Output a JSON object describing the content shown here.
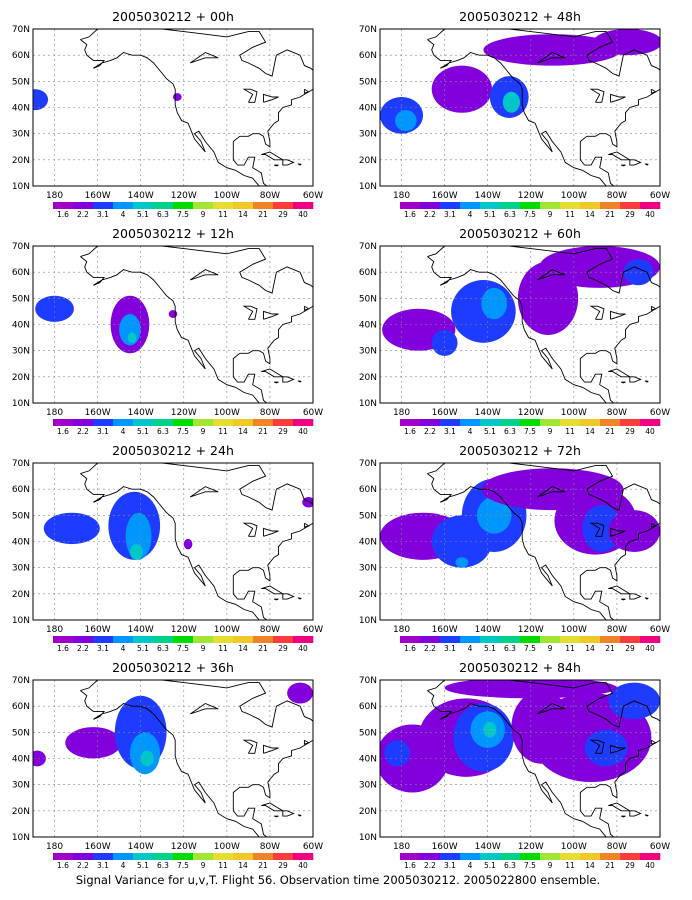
{
  "caption": "Signal Variance for u,v,T. Flight 56. Observation time 2005030212. 2005022800 ensemble.",
  "colorbar": {
    "levels": [
      "1.6",
      "2.2",
      "3.1",
      "4",
      "5.1",
      "6.3",
      "7.5",
      "9",
      "11",
      "14",
      "21",
      "29",
      "40"
    ],
    "colors": [
      "#a000c8",
      "#8200dc",
      "#1e3cff",
      "#0096ff",
      "#00c8c8",
      "#00d28c",
      "#00dc00",
      "#a0e632",
      "#e6dc32",
      "#f0c828",
      "#f08228",
      "#fa3c3c",
      "#f00082"
    ]
  },
  "chart_data": {
    "type": "heatmap",
    "field": "Signal Variance for u,v,T",
    "x_ticks": [
      "180",
      "160W",
      "140W",
      "120W",
      "100W",
      "80W",
      "60W"
    ],
    "y_ticks": [
      "70N",
      "60N",
      "50N",
      "40N",
      "30N",
      "20N",
      "10N"
    ],
    "xlim": [
      -190,
      -60
    ],
    "ylim": [
      10,
      70
    ],
    "grid": true,
    "panels": [
      {
        "title": "2005030212 + 00h",
        "blobs": [
          {
            "lon": -189,
            "lat": 43,
            "rx": 6,
            "ry": 4,
            "level": 2
          },
          {
            "lon": -123,
            "lat": 44,
            "rx": 2,
            "ry": 1.5,
            "level": 1
          }
        ]
      },
      {
        "title": "2005030212 + 12h",
        "blobs": [
          {
            "lon": -180,
            "lat": 46,
            "rx": 9,
            "ry": 5,
            "level": 2
          },
          {
            "lon": -145,
            "lat": 40,
            "rx": 9,
            "ry": 11,
            "level": 1
          },
          {
            "lon": -145,
            "lat": 38,
            "rx": 5,
            "ry": 6,
            "level": 3
          },
          {
            "lon": -144,
            "lat": 35,
            "rx": 2,
            "ry": 2,
            "level": 4
          },
          {
            "lon": -125,
            "lat": 44,
            "rx": 2,
            "ry": 1.5,
            "level": 1
          }
        ]
      },
      {
        "title": "2005030212 + 24h",
        "blobs": [
          {
            "lon": -172,
            "lat": 45,
            "rx": 13,
            "ry": 6,
            "level": 2
          },
          {
            "lon": -143,
            "lat": 46,
            "rx": 12,
            "ry": 13,
            "level": 2
          },
          {
            "lon": -141,
            "lat": 42,
            "rx": 6,
            "ry": 9,
            "level": 3
          },
          {
            "lon": -142,
            "lat": 36,
            "rx": 3,
            "ry": 3,
            "level": 4
          },
          {
            "lon": -118,
            "lat": 39,
            "rx": 2,
            "ry": 2,
            "level": 1
          },
          {
            "lon": -62,
            "lat": 55,
            "rx": 3,
            "ry": 2,
            "level": 1
          }
        ]
      },
      {
        "title": "2005030212 + 36h",
        "blobs": [
          {
            "lon": -188,
            "lat": 40,
            "rx": 4,
            "ry": 3,
            "level": 1
          },
          {
            "lon": -162,
            "lat": 46,
            "rx": 13,
            "ry": 6,
            "level": 1
          },
          {
            "lon": -140,
            "lat": 50,
            "rx": 12,
            "ry": 14,
            "level": 2
          },
          {
            "lon": -138,
            "lat": 42,
            "rx": 7,
            "ry": 8,
            "level": 3
          },
          {
            "lon": -137,
            "lat": 40,
            "rx": 3,
            "ry": 3,
            "level": 4
          },
          {
            "lon": -66,
            "lat": 65,
            "rx": 6,
            "ry": 4,
            "level": 1
          }
        ]
      },
      {
        "title": "2005030212 + 48h",
        "blobs": [
          {
            "lon": -180,
            "lat": 37,
            "rx": 10,
            "ry": 7,
            "level": 2
          },
          {
            "lon": -178,
            "lat": 35,
            "rx": 5,
            "ry": 4,
            "level": 3
          },
          {
            "lon": -152,
            "lat": 47,
            "rx": 14,
            "ry": 9,
            "level": 1
          },
          {
            "lon": -130,
            "lat": 44,
            "rx": 9,
            "ry": 8,
            "level": 2
          },
          {
            "lon": -129,
            "lat": 42,
            "rx": 4,
            "ry": 4,
            "level": 4
          },
          {
            "lon": -110,
            "lat": 62,
            "rx": 32,
            "ry": 6,
            "level": 1
          },
          {
            "lon": -75,
            "lat": 65,
            "rx": 16,
            "ry": 5,
            "level": 1
          }
        ]
      },
      {
        "title": "2005030212 + 60h",
        "blobs": [
          {
            "lon": -172,
            "lat": 38,
            "rx": 17,
            "ry": 8,
            "level": 1
          },
          {
            "lon": -160,
            "lat": 33,
            "rx": 6,
            "ry": 5,
            "level": 2
          },
          {
            "lon": -142,
            "lat": 45,
            "rx": 15,
            "ry": 12,
            "level": 2
          },
          {
            "lon": -137,
            "lat": 48,
            "rx": 6,
            "ry": 6,
            "level": 3
          },
          {
            "lon": -112,
            "lat": 50,
            "rx": 14,
            "ry": 14,
            "level": 1
          },
          {
            "lon": -88,
            "lat": 62,
            "rx": 28,
            "ry": 8,
            "level": 1
          },
          {
            "lon": -70,
            "lat": 60,
            "rx": 7,
            "ry": 5,
            "level": 2
          }
        ]
      },
      {
        "title": "2005030212 + 72h",
        "blobs": [
          {
            "lon": -170,
            "lat": 42,
            "rx": 20,
            "ry": 9,
            "level": 1
          },
          {
            "lon": -152,
            "lat": 40,
            "rx": 14,
            "ry": 10,
            "level": 2
          },
          {
            "lon": -137,
            "lat": 50,
            "rx": 15,
            "ry": 14,
            "level": 2
          },
          {
            "lon": -137,
            "lat": 50,
            "rx": 8,
            "ry": 7,
            "level": 3
          },
          {
            "lon": -110,
            "lat": 60,
            "rx": 33,
            "ry": 8,
            "level": 1
          },
          {
            "lon": -90,
            "lat": 48,
            "rx": 19,
            "ry": 13,
            "level": 1
          },
          {
            "lon": -87,
            "lat": 45,
            "rx": 9,
            "ry": 9,
            "level": 2
          },
          {
            "lon": -72,
            "lat": 44,
            "rx": 12,
            "ry": 8,
            "level": 1
          },
          {
            "lon": -152,
            "lat": 32,
            "rx": 3,
            "ry": 2,
            "level": 3
          }
        ]
      },
      {
        "title": "2005030212 + 84h",
        "blobs": [
          {
            "lon": -175,
            "lat": 40,
            "rx": 17,
            "ry": 13,
            "level": 1
          },
          {
            "lon": -182,
            "lat": 42,
            "rx": 6,
            "ry": 5,
            "level": 2
          },
          {
            "lon": -150,
            "lat": 48,
            "rx": 22,
            "ry": 15,
            "level": 1
          },
          {
            "lon": -142,
            "lat": 48,
            "rx": 14,
            "ry": 13,
            "level": 2
          },
          {
            "lon": -140,
            "lat": 51,
            "rx": 8,
            "ry": 7,
            "level": 3
          },
          {
            "lon": -139,
            "lat": 51,
            "rx": 3,
            "ry": 3,
            "level": 4
          },
          {
            "lon": -115,
            "lat": 52,
            "rx": 14,
            "ry": 14,
            "level": 1
          },
          {
            "lon": -92,
            "lat": 48,
            "rx": 28,
            "ry": 17,
            "level": 1
          },
          {
            "lon": -85,
            "lat": 44,
            "rx": 10,
            "ry": 7,
            "level": 2
          },
          {
            "lon": -72,
            "lat": 62,
            "rx": 12,
            "ry": 7,
            "level": 2
          },
          {
            "lon": -120,
            "lat": 67,
            "rx": 40,
            "ry": 4,
            "level": 1
          }
        ]
      }
    ]
  }
}
